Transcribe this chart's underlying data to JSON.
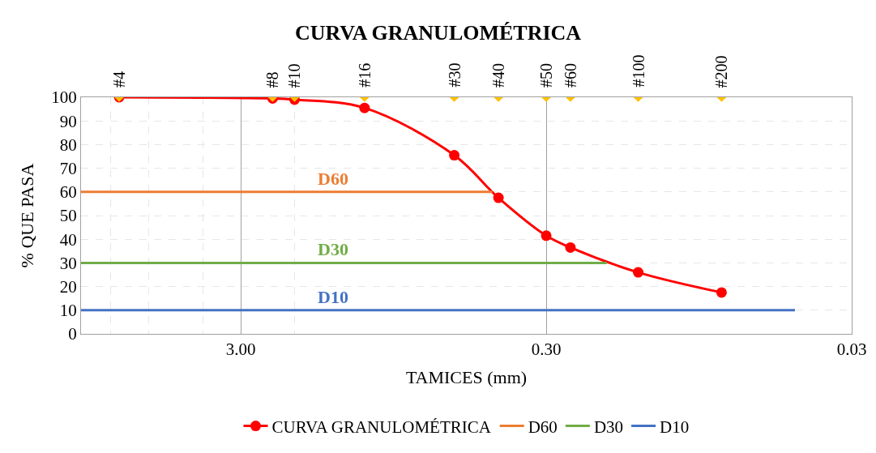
{
  "chart_data": {
    "type": "line",
    "title": "CURVA GRANULOMÉTRICA",
    "xlabel": "TAMICES (mm)",
    "ylabel": "% QUE PASA",
    "log": "x",
    "xlim": [
      10,
      0.03
    ],
    "xticks": [
      {
        "value": 3,
        "label": "3.00"
      },
      {
        "value": 0.3,
        "label": "0.30"
      },
      {
        "value": 0.03,
        "label": "0.03"
      }
    ],
    "ylim": [
      0,
      100
    ],
    "yticks": [
      0,
      10,
      20,
      30,
      40,
      50,
      60,
      70,
      80,
      90,
      100
    ],
    "grid": true,
    "legend": "bottom",
    "series": [
      {
        "name": "CURVA GRANULOMÉTRICA",
        "color": "#ff0000",
        "marker": "circle",
        "x": [
          7.5,
          2.36,
          2.0,
          1.18,
          0.6,
          0.43,
          0.3,
          0.25,
          0.15,
          0.08
        ],
        "values": [
          100,
          99.5,
          99,
          95.5,
          75.5,
          57.5,
          41.5,
          36.5,
          26,
          17.5
        ]
      },
      {
        "name": "D60",
        "color": "#ed7d31",
        "marker": "none",
        "x": [
          10,
          0.45
        ],
        "values": [
          60,
          60
        ]
      },
      {
        "name": "D30",
        "color": "#70ad47",
        "marker": "none",
        "x": [
          10,
          0.19
        ],
        "values": [
          30,
          30
        ]
      },
      {
        "name": "D10",
        "color": "#4472c4",
        "marker": "none",
        "x": [
          10,
          0.046
        ],
        "values": [
          10,
          10
        ]
      },
      {
        "type": "scatter",
        "color": "#ffc000",
        "marker": "diamond",
        "x": [
          7.5,
          2.36,
          2.0,
          1.18,
          0.6,
          0.43,
          0.3,
          0.25,
          0.15,
          0.08
        ],
        "values": [
          100,
          100,
          100,
          100,
          100,
          100,
          100,
          100,
          100,
          100
        ]
      }
    ],
    "annotations": [
      {
        "text": "D60",
        "x": 1.5,
        "y": 60
      },
      {
        "text": "D30",
        "x": 1.5,
        "y": 30
      },
      {
        "text": "D10",
        "x": 1.5,
        "y": 10
      },
      {
        "text": "#4",
        "x": 7.5,
        "y": 100
      },
      {
        "text": "#8",
        "x": 2.36,
        "y": 100
      },
      {
        "text": "#10",
        "x": 2.0,
        "y": 100
      },
      {
        "text": "#16",
        "x": 1.18,
        "y": 100
      },
      {
        "text": "#30",
        "x": 0.6,
        "y": 100
      },
      {
        "text": "#40",
        "x": 0.43,
        "y": 100
      },
      {
        "text": "#50",
        "x": 0.3,
        "y": 100
      },
      {
        "text": "#60",
        "x": 0.25,
        "y": 100
      },
      {
        "text": "#100",
        "x": 0.15,
        "y": 100
      },
      {
        "text": "#200",
        "x": 0.08,
        "y": 100
      }
    ]
  }
}
